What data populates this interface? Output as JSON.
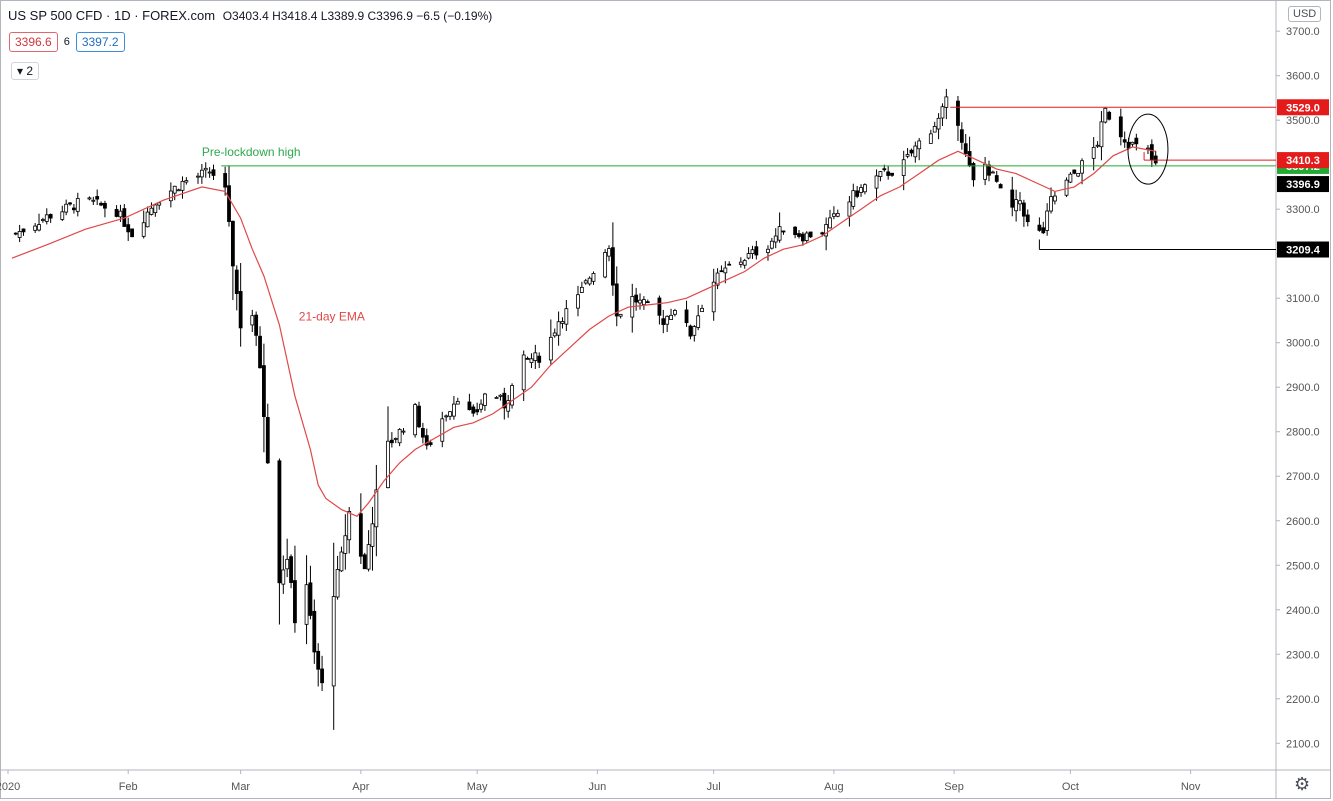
{
  "header": {
    "symbol": "US SP 500 CFD · 1D · FOREX.com",
    "ohlc": "O3403.4 H3418.4 L3389.9 C3396.9 −6.5 (−0.19%)",
    "bid": "3396.6",
    "spread": "6",
    "ask": "3397.2",
    "indicator_toggle": "▾ 2",
    "currency": "USD"
  },
  "colors": {
    "candle": "#000000",
    "ema": "#e04848",
    "prelockdown_line": "#2ea84c",
    "red_level": "#e31b1b",
    "green_level": "#22aa33",
    "black_level": "#000000",
    "axis_text": "#555555",
    "grid": "#ffffff"
  },
  "chart_data": {
    "type": "line",
    "title": "US SP 500 CFD · 1D · FOREX.com",
    "xlabel": "",
    "ylabel": "",
    "ylim": [
      2040,
      3770
    ],
    "grid": false,
    "y_ticks": [
      2100,
      2200,
      2300,
      2400,
      2500,
      2600,
      2700,
      2800,
      2900,
      3000,
      3100,
      3200,
      3300,
      3400,
      3500,
      3600,
      3700
    ],
    "x_ticks": [
      {
        "label": "2020",
        "day": 0
      },
      {
        "label": "Feb",
        "day": 31
      },
      {
        "label": "Mar",
        "day": 60
      },
      {
        "label": "Apr",
        "day": 91
      },
      {
        "label": "May",
        "day": 121
      },
      {
        "label": "Jun",
        "day": 152
      },
      {
        "label": "Jul",
        "day": 182
      },
      {
        "label": "Aug",
        "day": 213
      },
      {
        "label": "Sep",
        "day": 244
      },
      {
        "label": "Oct",
        "day": 274
      },
      {
        "label": "Nov",
        "day": 305
      }
    ],
    "close_series": {
      "name": "US SP 500 CFD",
      "points": [
        [
          2,
          3245
        ],
        [
          10,
          3283
        ],
        [
          20,
          3320
        ],
        [
          28,
          3296
        ],
        [
          32,
          3245
        ],
        [
          38,
          3318
        ],
        [
          45,
          3360
        ],
        [
          52,
          3385
        ],
        [
          54,
          3372
        ],
        [
          56,
          3340
        ],
        [
          58,
          3180
        ],
        [
          60,
          3040
        ],
        [
          62,
          3120
        ],
        [
          65,
          2950
        ],
        [
          67,
          2740
        ],
        [
          70,
          2470
        ],
        [
          72,
          2520
        ],
        [
          74,
          2380
        ],
        [
          77,
          2460
        ],
        [
          79,
          2300
        ],
        [
          81,
          2230
        ],
        [
          83,
          2400
        ],
        [
          86,
          2520
        ],
        [
          88,
          2620
        ],
        [
          90,
          2560
        ],
        [
          92,
          2490
        ],
        [
          95,
          2660
        ],
        [
          98,
          2770
        ],
        [
          101,
          2800
        ],
        [
          105,
          2850
        ],
        [
          108,
          2760
        ],
        [
          112,
          2830
        ],
        [
          116,
          2880
        ],
        [
          120,
          2830
        ],
        [
          124,
          2900
        ],
        [
          128,
          2860
        ],
        [
          133,
          2960
        ],
        [
          138,
          2970
        ],
        [
          142,
          3050
        ],
        [
          147,
          3100
        ],
        [
          152,
          3180
        ],
        [
          155,
          3220
        ],
        [
          157,
          3060
        ],
        [
          161,
          3100
        ],
        [
          165,
          3080
        ],
        [
          169,
          3050
        ],
        [
          172,
          3080
        ],
        [
          176,
          3020
        ],
        [
          181,
          3130
        ],
        [
          186,
          3170
        ],
        [
          190,
          3190
        ],
        [
          196,
          3220
        ],
        [
          200,
          3260
        ],
        [
          205,
          3240
        ],
        [
          210,
          3250
        ],
        [
          214,
          3290
        ],
        [
          218,
          3330
        ],
        [
          222,
          3360
        ],
        [
          226,
          3380
        ],
        [
          230,
          3390
        ],
        [
          235,
          3450
        ],
        [
          240,
          3500
        ],
        [
          243,
          3560
        ],
        [
          245,
          3500
        ],
        [
          247,
          3420
        ],
        [
          250,
          3330
        ],
        [
          252,
          3400
        ],
        [
          255,
          3360
        ],
        [
          258,
          3290
        ],
        [
          261,
          3320
        ],
        [
          264,
          3240
        ],
        [
          267,
          3250
        ],
        [
          269,
          3320
        ],
        [
          272,
          3350
        ],
        [
          275,
          3380
        ],
        [
          278,
          3410
        ],
        [
          281,
          3450
        ],
        [
          283,
          3520
        ],
        [
          285,
          3500
        ],
        [
          287,
          3470
        ],
        [
          289,
          3450
        ],
        [
          291,
          3440
        ],
        [
          293,
          3450
        ],
        [
          295,
          3410
        ],
        [
          296,
          3397
        ]
      ]
    },
    "series": [
      {
        "name": "21-day EMA",
        "points": [
          [
            1,
            3190
          ],
          [
            10,
            3220
          ],
          [
            20,
            3255
          ],
          [
            30,
            3280
          ],
          [
            40,
            3320
          ],
          [
            50,
            3350
          ],
          [
            56,
            3340
          ],
          [
            60,
            3280
          ],
          [
            63,
            3210
          ],
          [
            66,
            3150
          ],
          [
            70,
            3040
          ],
          [
            74,
            2880
          ],
          [
            78,
            2760
          ],
          [
            80,
            2680
          ],
          [
            82,
            2650
          ],
          [
            86,
            2625
          ],
          [
            90,
            2610
          ],
          [
            93,
            2640
          ],
          [
            97,
            2690
          ],
          [
            101,
            2730
          ],
          [
            105,
            2760
          ],
          [
            110,
            2785
          ],
          [
            115,
            2810
          ],
          [
            120,
            2820
          ],
          [
            125,
            2840
          ],
          [
            130,
            2870
          ],
          [
            135,
            2900
          ],
          [
            140,
            2950
          ],
          [
            145,
            2990
          ],
          [
            150,
            3030
          ],
          [
            155,
            3060
          ],
          [
            160,
            3080
          ],
          [
            165,
            3085
          ],
          [
            170,
            3090
          ],
          [
            175,
            3100
          ],
          [
            180,
            3120
          ],
          [
            185,
            3140
          ],
          [
            190,
            3160
          ],
          [
            195,
            3190
          ],
          [
            200,
            3210
          ],
          [
            205,
            3220
          ],
          [
            210,
            3240
          ],
          [
            215,
            3270
          ],
          [
            220,
            3300
          ],
          [
            225,
            3330
          ],
          [
            230,
            3350
          ],
          [
            235,
            3380
          ],
          [
            240,
            3410
          ],
          [
            245,
            3430
          ],
          [
            250,
            3410
          ],
          [
            255,
            3390
          ],
          [
            260,
            3380
          ],
          [
            265,
            3360
          ],
          [
            270,
            3340
          ],
          [
            275,
            3350
          ],
          [
            280,
            3380
          ],
          [
            285,
            3420
          ],
          [
            290,
            3440
          ],
          [
            296,
            3430
          ]
        ]
      }
    ],
    "horizontal_levels": [
      {
        "name": "Pre-lockdown high",
        "value": 3397.2,
        "from_day": 55,
        "label": "3397.2",
        "color": "#22aa33"
      },
      {
        "name": "3529.0",
        "value": 3529.0,
        "from_day": 243,
        "label": "3529.0",
        "color": "#e31b1b"
      },
      {
        "name": "3410.3",
        "value": 3410.3,
        "from_day": 293,
        "label": "3410.3",
        "color": "#e31b1b"
      },
      {
        "name": "3209.4",
        "value": 3209.4,
        "from_day": 266,
        "label": "3209.4",
        "color": "#000000"
      }
    ],
    "last_price": {
      "value": 3396.9,
      "label": "3396.9"
    },
    "annotations": [
      {
        "text": "Pre-lockdown high",
        "day": 50,
        "value": 3420,
        "color": "#2ea84c"
      },
      {
        "text": "21-day EMA",
        "day": 75,
        "value": 3050,
        "color": "#e04848"
      }
    ],
    "highlight_ellipse": {
      "day": 294,
      "value": 3435
    }
  }
}
